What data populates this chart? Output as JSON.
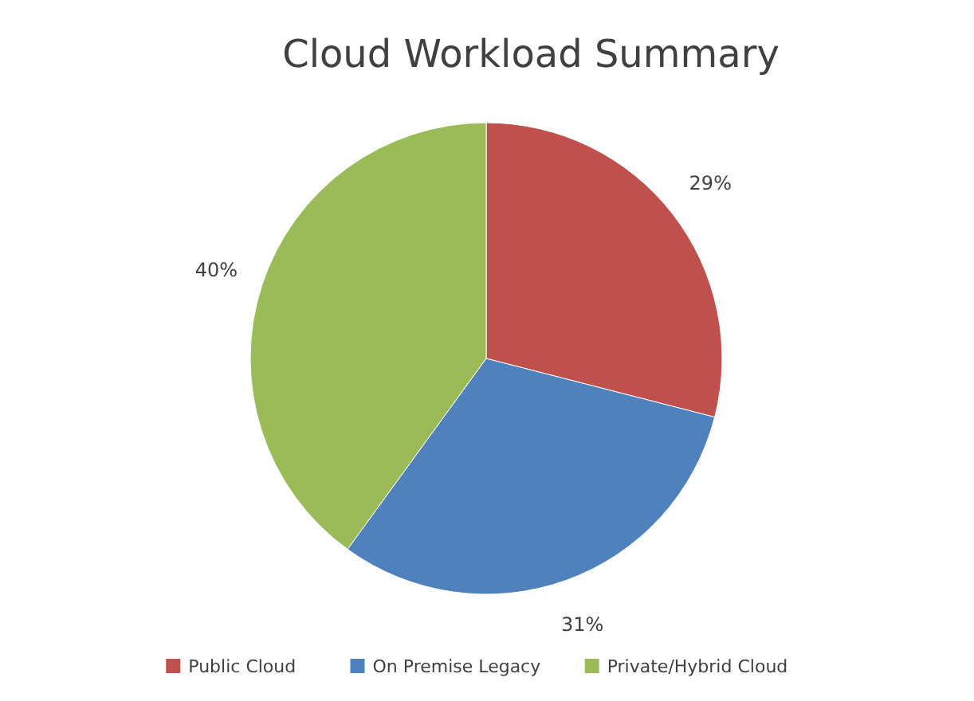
{
  "chart_data": {
    "type": "pie",
    "title": "Cloud Workload Summary",
    "categories": [
      "Public Cloud",
      "On Premise Legacy",
      "Private/Hybrid Cloud"
    ],
    "values": [
      29,
      31,
      40
    ],
    "colors": [
      "#c0504d",
      "#4f81bd",
      "#9bbb59"
    ],
    "value_labels": [
      "29%",
      "31%",
      "40%"
    ],
    "legend": "bottom"
  }
}
